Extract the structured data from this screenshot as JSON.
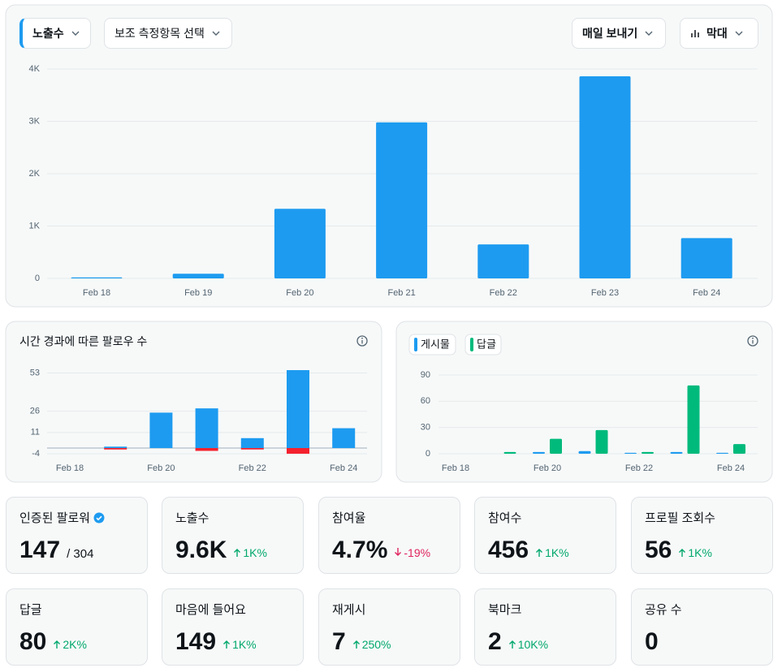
{
  "toolbar": {
    "metric": "노출수",
    "secondary": "보조 측정항목 선택",
    "export": "매일 보내기",
    "view": "막대"
  },
  "chart_data": [
    {
      "type": "bar",
      "categories": [
        "Feb 18",
        "Feb 19",
        "Feb 20",
        "Feb 21",
        "Feb 22",
        "Feb 23",
        "Feb 24"
      ],
      "values": [
        20,
        90,
        1330,
        2980,
        650,
        3860,
        770
      ],
      "color": "#1d9bf0",
      "ylim": [
        0,
        4000
      ],
      "yticks": [
        0,
        {
          "value": 1000,
          "label": "1K"
        },
        {
          "value": 2000,
          "label": "2K"
        },
        {
          "value": 3000,
          "label": "3K"
        },
        {
          "value": 4000,
          "label": "4K"
        }
      ],
      "grid": true
    },
    {
      "type": "bar",
      "title": "시간 경과에 따른 팔로우 수",
      "stacked": true,
      "categories": [
        "Feb 18",
        null,
        "Feb 20",
        null,
        "Feb 22",
        null,
        "Feb 24"
      ],
      "series": [
        {
          "color": "#1d9bf0",
          "values": [
            0,
            1,
            25,
            28,
            7,
            55,
            14
          ]
        },
        {
          "color": "#f4212e",
          "values": [
            0,
            -1,
            0,
            -2,
            -1,
            -4,
            0
          ]
        }
      ],
      "ylim": [
        -4,
        55
      ],
      "yticks": [
        -4,
        11,
        26,
        53
      ],
      "grid": true
    },
    {
      "type": "bar",
      "categories": [
        "Feb 18",
        null,
        "Feb 20",
        null,
        "Feb 22",
        null,
        "Feb 24"
      ],
      "series": [
        {
          "name": "게시물",
          "color": "#1d9bf0",
          "values": [
            0,
            0,
            2,
            3,
            1,
            2,
            1
          ]
        },
        {
          "name": "답글",
          "color": "#00ba7c",
          "values": [
            0,
            2,
            17,
            27,
            2,
            78,
            11
          ]
        }
      ],
      "ylim": [
        0,
        90
      ],
      "yticks": [
        0,
        30,
        60,
        90
      ],
      "grid": true
    }
  ],
  "stats": [
    {
      "label": "인증된 팔로워",
      "value": "147",
      "total": "/ 304"
    },
    {
      "label": "노출수",
      "value": "9.6K",
      "change": "1K%",
      "direction": "up"
    },
    {
      "label": "참여율",
      "value": "4.7%",
      "change": "-19%",
      "direction": "down"
    },
    {
      "label": "참여수",
      "value": "456",
      "change": "1K%",
      "direction": "up"
    },
    {
      "label": "프로필 조회수",
      "value": "56",
      "change": "1K%",
      "direction": "up"
    },
    {
      "label": "답글",
      "value": "80",
      "change": "2K%",
      "direction": "up"
    },
    {
      "label": "마음에 들어요",
      "value": "149",
      "change": "1K%",
      "direction": "up"
    },
    {
      "label": "재게시",
      "value": "7",
      "change": "250%",
      "direction": "up"
    },
    {
      "label": "북마크",
      "value": "2",
      "change": "10K%",
      "direction": "up"
    },
    {
      "label": "공유 수",
      "value": "0"
    }
  ]
}
